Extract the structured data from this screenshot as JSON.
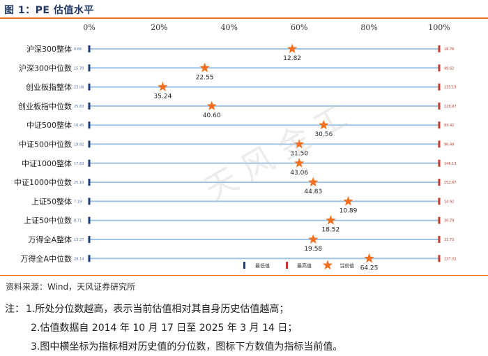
{
  "figure_title": "图 1：PE 估值水平",
  "watermark": "天风金工",
  "source": "资料来源：Wind，天风证券研究所",
  "notes": {
    "title": "注：",
    "items": [
      "1.所处分位数越高，表示当前估值相对其自身历史估值越高；",
      "2.估值数据自 2014 年 10 月 17 日至 2025 年 3 月 14 日；",
      "3.图中横坐标为指标相对历史值的分位数，图标下方数值为指标当前值。"
    ]
  },
  "colors": {
    "accent": "#e8732a",
    "title": "#1f3864",
    "min_marker": "#1f3c7a",
    "max_marker": "#c0392b",
    "bar": "#9dc3e6",
    "star": "#f07020"
  },
  "chart_data": {
    "type": "scatter",
    "title": "",
    "xlabel": "",
    "ylabel": "",
    "x_ticks": [
      "0%",
      "20%",
      "40%",
      "60%",
      "80%",
      "100%"
    ],
    "xlim": [
      0,
      100
    ],
    "legend": {
      "placement": "bottom-right",
      "entries": [
        "最低值",
        "最高值",
        "当前值"
      ]
    },
    "rows": [
      {
        "name": "沪深300整体",
        "min": "8.66",
        "max": "18.78",
        "current": "12.82",
        "percentile": 58
      },
      {
        "name": "沪深300中位数",
        "min": "15.70",
        "max": "49.62",
        "current": "22.55",
        "percentile": 33
      },
      {
        "name": "创业板指整体",
        "min": "23.04",
        "max": "135.19",
        "current": "35.24",
        "percentile": 21
      },
      {
        "name": "创业板指中位数",
        "min": "25.83",
        "max": "128.97",
        "current": "40.60",
        "percentile": 35
      },
      {
        "name": "中证500整体",
        "min": "16.45",
        "max": "83.42",
        "current": "30.56",
        "percentile": 67
      },
      {
        "name": "中证500中位数",
        "min": "19.82",
        "max": "90.48",
        "current": "31.50",
        "percentile": 60
      },
      {
        "name": "中证1000整体",
        "min": "17.63",
        "max": "146.13",
        "current": "43.06",
        "percentile": 60
      },
      {
        "name": "中证1000中位数",
        "min": "25.10",
        "max": "152.67",
        "current": "44.83",
        "percentile": 64
      },
      {
        "name": "上证50整体",
        "min": "7.19",
        "max": "14.92",
        "current": "10.89",
        "percentile": 74
      },
      {
        "name": "上证50中位数",
        "min": "8.71",
        "max": "30.79",
        "current": "18.52",
        "percentile": 69
      },
      {
        "name": "万得全A整体",
        "min": "13.27",
        "max": "31.73",
        "current": "19.58",
        "percentile": 64
      },
      {
        "name": "万得全A中位数",
        "min": "28.14",
        "max": "137.02",
        "current": "64.25",
        "percentile": 80
      }
    ]
  }
}
